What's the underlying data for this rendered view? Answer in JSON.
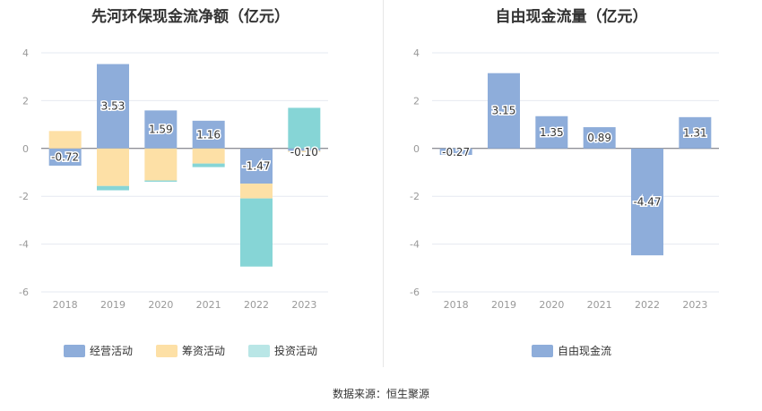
{
  "charts": [
    {
      "title": "先河环保现金流净额（亿元）",
      "legend": [
        {
          "name": "经营活动",
          "color": "#8eadda"
        },
        {
          "name": "筹资活动",
          "color": "#fde0a6"
        },
        {
          "name": "投资活动",
          "color": "#b9e6e6"
        }
      ]
    },
    {
      "title": "自由现金流量（亿元）",
      "legend": [
        {
          "name": "自由现金流",
          "color": "#8eadda"
        }
      ]
    }
  ],
  "source": "数据来源：恒生聚源",
  "chart_data": [
    {
      "type": "bar",
      "stacked": true,
      "title": "先河环保现金流净额（亿元）",
      "categories": [
        "2018",
        "2019",
        "2020",
        "2021",
        "2022",
        "2023"
      ],
      "ylim": [
        -6,
        4
      ],
      "yticks": [
        4,
        2,
        0,
        -2,
        -4,
        -6
      ],
      "grid": true,
      "legend_position": "bottom",
      "series": [
        {
          "name": "经营活动",
          "color": "#8eadda",
          "values": [
            -0.72,
            3.53,
            1.59,
            1.16,
            -1.47,
            -0.1
          ],
          "labels": [
            "-0.72",
            "3.53",
            "1.59",
            "1.16",
            "-1.47",
            "-0.10"
          ]
        },
        {
          "name": "筹资活动",
          "color": "#fde0a6",
          "values": [
            0.73,
            -1.57,
            -1.34,
            -0.63,
            -0.62,
            -0.05
          ]
        },
        {
          "name": "投资活动",
          "color": "#86d5d6",
          "values": [
            0.0,
            -0.18,
            -0.05,
            -0.15,
            -2.85,
            1.7
          ]
        }
      ]
    },
    {
      "type": "bar",
      "title": "自由现金流量（亿元）",
      "categories": [
        "2018",
        "2019",
        "2020",
        "2021",
        "2022",
        "2023"
      ],
      "ylim": [
        -6,
        4
      ],
      "yticks": [
        4,
        2,
        0,
        -2,
        -4,
        -6
      ],
      "grid": true,
      "legend_position": "bottom",
      "series": [
        {
          "name": "自由现金流",
          "color": "#8eadda",
          "values": [
            -0.27,
            3.15,
            1.35,
            0.89,
            -4.47,
            1.31
          ],
          "labels": [
            "-0.27",
            "3.15",
            "1.35",
            "0.89",
            "-4.47",
            "1.31"
          ]
        }
      ]
    }
  ]
}
